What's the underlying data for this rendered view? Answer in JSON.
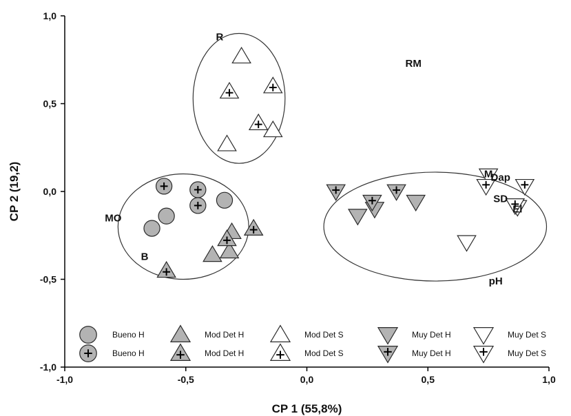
{
  "chart_data": {
    "type": "scatter",
    "title": "",
    "xlabel": "CP 1 (55,8%)",
    "ylabel": "CP 2 (19,2)",
    "xlim": [
      -1.0,
      1.0
    ],
    "ylim": [
      -1.0,
      1.0
    ],
    "x_ticks": [
      "-1,0",
      "-0,5",
      "0,0",
      "0,5",
      "1,0"
    ],
    "y_ticks": [
      "1,0",
      "0,5",
      "0,0",
      "-0,5",
      "-1,0"
    ],
    "grid": false,
    "legend_position": "bottom-inside",
    "colors": {
      "filled": "#b3b3b3",
      "open": "#ffffff",
      "edge": "#2a2a2a"
    },
    "series": [
      {
        "name": "Bueno H",
        "marker": "circle",
        "fill": "filled",
        "cross": false,
        "points": [
          [
            -0.34,
            -0.05
          ],
          [
            -0.58,
            -0.14
          ],
          [
            -0.64,
            -0.21
          ]
        ]
      },
      {
        "name": "Bueno H",
        "marker": "circle",
        "fill": "filled",
        "cross": true,
        "points": [
          [
            -0.59,
            0.03
          ],
          [
            -0.45,
            0.01
          ],
          [
            -0.45,
            -0.08
          ]
        ]
      },
      {
        "name": "Mod Det H",
        "marker": "triangle-up",
        "fill": "filled",
        "cross": false,
        "points": [
          [
            -0.31,
            -0.23
          ],
          [
            -0.32,
            -0.34
          ],
          [
            -0.39,
            -0.36
          ]
        ]
      },
      {
        "name": "Mod Det H",
        "marker": "triangle-up",
        "fill": "filled",
        "cross": true,
        "points": [
          [
            -0.22,
            -0.21
          ],
          [
            -0.33,
            -0.27
          ],
          [
            -0.58,
            -0.45
          ]
        ]
      },
      {
        "name": "Mod Det S",
        "marker": "triangle-up",
        "fill": "open",
        "cross": false,
        "points": [
          [
            -0.27,
            0.77
          ],
          [
            -0.14,
            0.35
          ],
          [
            -0.33,
            0.27
          ]
        ]
      },
      {
        "name": "Mod Det S",
        "marker": "triangle-up",
        "fill": "open",
        "cross": true,
        "points": [
          [
            -0.32,
            0.57
          ],
          [
            -0.14,
            0.6
          ],
          [
            -0.2,
            0.39
          ]
        ]
      },
      {
        "name": "Muy Det H",
        "marker": "triangle-down",
        "fill": "filled",
        "cross": false,
        "points": [
          [
            0.21,
            -0.14
          ],
          [
            0.28,
            -0.1
          ],
          [
            0.45,
            -0.06
          ]
        ]
      },
      {
        "name": "Muy Det H",
        "marker": "triangle-down",
        "fill": "filled",
        "cross": true,
        "points": [
          [
            0.12,
            0.0
          ],
          [
            0.27,
            -0.06
          ],
          [
            0.37,
            0.0
          ]
        ]
      },
      {
        "name": "Muy Det S",
        "marker": "triangle-down",
        "fill": "open",
        "cross": false,
        "points": [
          [
            0.75,
            0.09
          ],
          [
            0.66,
            -0.29
          ],
          [
            0.87,
            -0.09
          ]
        ]
      },
      {
        "name": "Muy Det S",
        "marker": "triangle-down",
        "fill": "open",
        "cross": true,
        "points": [
          [
            0.74,
            0.03
          ],
          [
            0.9,
            0.03
          ],
          [
            0.86,
            -0.08
          ]
        ]
      }
    ],
    "annotations": [
      {
        "text": "R",
        "x": -0.36,
        "y": 0.86
      },
      {
        "text": "RM",
        "x": 0.44,
        "y": 0.71
      },
      {
        "text": "MO",
        "x": -0.8,
        "y": -0.17
      },
      {
        "text": "B",
        "x": -0.67,
        "y": -0.39
      },
      {
        "text": "M",
        "x": 0.75,
        "y": 0.08
      },
      {
        "text": "Dap",
        "x": 0.8,
        "y": 0.06
      },
      {
        "text": "SD",
        "x": 0.8,
        "y": -0.06
      },
      {
        "text": "El",
        "x": 0.87,
        "y": -0.12
      },
      {
        "text": "pH",
        "x": 0.78,
        "y": -0.53
      }
    ],
    "groups": [
      {
        "cx": -0.28,
        "cy": 0.53,
        "rx": 0.19,
        "ry": 0.37
      },
      {
        "cx": -0.51,
        "cy": -0.2,
        "rx": 0.27,
        "ry": 0.3
      },
      {
        "cx": 0.53,
        "cy": -0.2,
        "rx": 0.46,
        "ry": 0.31
      }
    ]
  }
}
